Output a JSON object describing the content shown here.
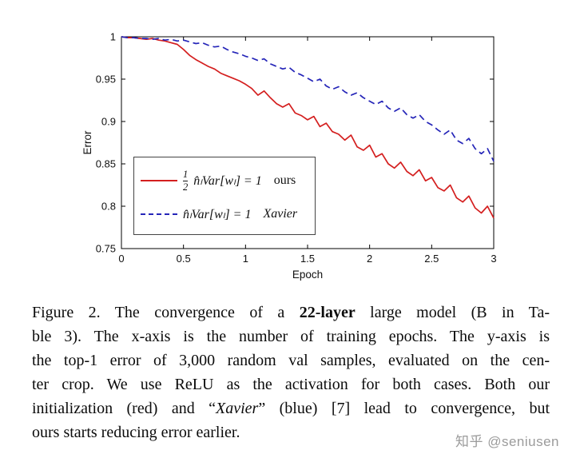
{
  "watermark": "知乎 @seniusen",
  "figure": {
    "caption_lines": [
      [
        {
          "t": "Figure 2. The convergence of a "
        },
        {
          "t": "22-layer",
          "b": true
        },
        {
          "t": " large model (B in Ta-"
        }
      ],
      [
        {
          "t": "ble 3). The x-axis is the number of training epochs. The y-axis is"
        }
      ],
      [
        {
          "t": "the top-1 error of 3,000 random val samples, evaluated on the cen-"
        }
      ],
      [
        {
          "t": "ter crop. We use ReLU as the activation for both cases. Both our"
        }
      ],
      [
        {
          "t": "initialization (red) and “"
        },
        {
          "t": "Xavier",
          "i": true
        },
        {
          "t": "” (blue) [7] lead to convergence, but"
        }
      ],
      [
        {
          "t": "ours starts reducing error earlier."
        }
      ]
    ]
  },
  "chart_data": {
    "type": "line",
    "title": "",
    "xlabel": "Epoch",
    "ylabel": "Error",
    "xlim": [
      0,
      3
    ],
    "ylim": [
      0.75,
      1
    ],
    "xticks": [
      0,
      0.5,
      1,
      1.5,
      2,
      2.5,
      3
    ],
    "yticks": [
      0.75,
      0.8,
      0.85,
      0.9,
      0.95,
      1
    ],
    "grid": false,
    "legend_position": "inside-left",
    "x_start": 0,
    "x_step": 0.05,
    "series": [
      {
        "name": "ours",
        "color": "#d41f1f",
        "style": "solid",
        "values": [
          1.0,
          0.999,
          0.999,
          0.998,
          0.997,
          0.998,
          0.996,
          0.995,
          0.993,
          0.991,
          0.985,
          0.978,
          0.973,
          0.969,
          0.965,
          0.962,
          0.957,
          0.954,
          0.951,
          0.948,
          0.944,
          0.939,
          0.931,
          0.936,
          0.928,
          0.921,
          0.917,
          0.921,
          0.91,
          0.907,
          0.902,
          0.906,
          0.894,
          0.898,
          0.888,
          0.885,
          0.878,
          0.884,
          0.87,
          0.866,
          0.872,
          0.858,
          0.862,
          0.85,
          0.845,
          0.852,
          0.841,
          0.836,
          0.843,
          0.83,
          0.834,
          0.822,
          0.818,
          0.825,
          0.81,
          0.805,
          0.812,
          0.798,
          0.792,
          0.8,
          0.786
        ]
      },
      {
        "name": "Xavier",
        "color": "#2525b8",
        "style": "dashed",
        "values": [
          1.0,
          0.999,
          0.999,
          0.998,
          0.998,
          0.997,
          0.998,
          0.996,
          0.997,
          0.995,
          0.996,
          0.994,
          0.992,
          0.993,
          0.99,
          0.988,
          0.989,
          0.985,
          0.982,
          0.98,
          0.977,
          0.975,
          0.972,
          0.974,
          0.968,
          0.965,
          0.962,
          0.964,
          0.958,
          0.955,
          0.951,
          0.947,
          0.95,
          0.942,
          0.938,
          0.941,
          0.935,
          0.931,
          0.934,
          0.928,
          0.924,
          0.92,
          0.924,
          0.916,
          0.912,
          0.916,
          0.908,
          0.904,
          0.908,
          0.9,
          0.896,
          0.89,
          0.885,
          0.89,
          0.878,
          0.874,
          0.88,
          0.868,
          0.862,
          0.868,
          0.853
        ]
      }
    ],
    "legend": [
      {
        "frac_num": "1",
        "frac_den": "2",
        "formula": "n̂ₗVar[wₗ] = 1",
        "label": "ours",
        "label_italic": false,
        "line": "solid",
        "color": "#d41f1f"
      },
      {
        "formula": "n̂ₗVar[wₗ] = 1",
        "label": "Xavier",
        "label_italic": true,
        "line": "dashed",
        "color": "#2525b8"
      }
    ]
  }
}
